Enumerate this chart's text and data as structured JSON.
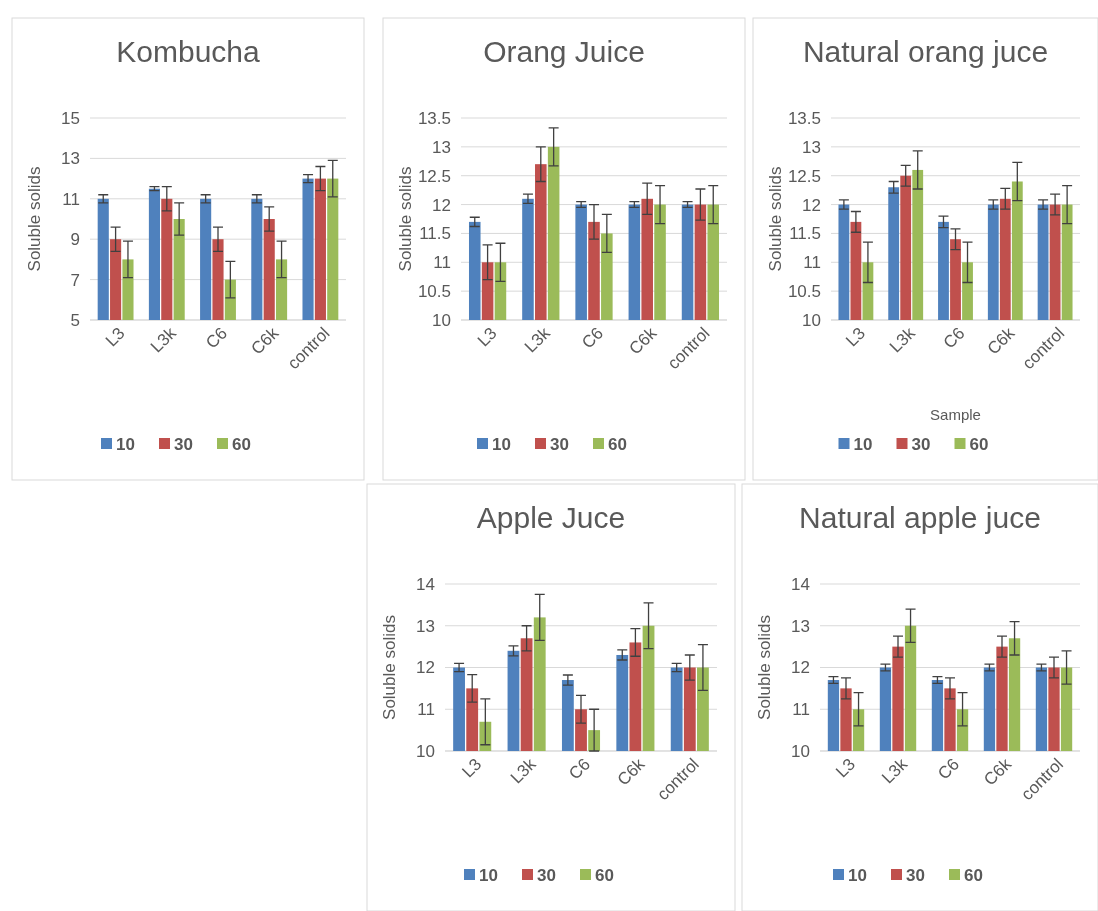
{
  "chart_data": [
    {
      "type": "bar",
      "title": "Kombucha",
      "ylabel": "Soluble solids",
      "categories": [
        "L3",
        "L3k",
        "C6",
        "C6k",
        "control"
      ],
      "ylim": [
        5,
        15
      ],
      "yticks": [
        5,
        7,
        9,
        11,
        13,
        15
      ],
      "grid": "y",
      "legend": "bottom",
      "series": [
        {
          "name": "10",
          "color": "#4f81bd",
          "values": [
            11,
            11.5,
            11,
            11,
            12
          ],
          "errors": [
            0.2,
            0.1,
            0.2,
            0.2,
            0.2
          ]
        },
        {
          "name": "30",
          "color": "#c0504d",
          "values": [
            9,
            11,
            9,
            10,
            12
          ],
          "errors": [
            0.6,
            0.6,
            0.6,
            0.6,
            0.6
          ]
        },
        {
          "name": "60",
          "color": "#9bbb59",
          "values": [
            8,
            10,
            7,
            8,
            12
          ],
          "errors": [
            0.9,
            0.8,
            0.9,
            0.9,
            0.9
          ]
        }
      ]
    },
    {
      "type": "bar",
      "title": "Orang Juice",
      "ylabel": "Soluble solids",
      "categories": [
        "L3",
        "L3k",
        "C6",
        "C6k",
        "control"
      ],
      "ylim": [
        10,
        13.5
      ],
      "yticks": [
        10,
        10.5,
        11,
        11.5,
        12,
        12.5,
        13,
        13.5
      ],
      "grid": "y",
      "legend": "bottom",
      "series": [
        {
          "name": "10",
          "color": "#4f81bd",
          "values": [
            11.7,
            12.1,
            12,
            12,
            12
          ],
          "errors": [
            0.08,
            0.08,
            0.05,
            0.05,
            0.05
          ]
        },
        {
          "name": "30",
          "color": "#c0504d",
          "values": [
            11,
            12.7,
            11.7,
            12.1,
            12
          ],
          "errors": [
            0.3,
            0.3,
            0.3,
            0.27,
            0.27
          ]
        },
        {
          "name": "60",
          "color": "#9bbb59",
          "values": [
            11,
            13,
            11.5,
            12,
            12
          ],
          "errors": [
            0.33,
            0.33,
            0.33,
            0.33,
            0.33
          ]
        }
      ]
    },
    {
      "type": "bar",
      "title": "Natural orang juce",
      "xlabel": "Sample",
      "ylabel": "Soluble solids",
      "categories": [
        "L3",
        "L3k",
        "C6",
        "C6k",
        "control"
      ],
      "ylim": [
        10,
        13.5
      ],
      "yticks": [
        10,
        10.5,
        11,
        11.5,
        12,
        12.5,
        13,
        13.5
      ],
      "grid": "y",
      "legend": "bottom",
      "series": [
        {
          "name": "10",
          "color": "#4f81bd",
          "values": [
            12,
            12.3,
            11.7,
            12,
            12
          ],
          "errors": [
            0.08,
            0.1,
            0.1,
            0.08,
            0.08
          ]
        },
        {
          "name": "30",
          "color": "#c0504d",
          "values": [
            11.7,
            12.5,
            11.4,
            12.1,
            12
          ],
          "errors": [
            0.18,
            0.18,
            0.18,
            0.18,
            0.18
          ]
        },
        {
          "name": "60",
          "color": "#9bbb59",
          "values": [
            11,
            12.6,
            11,
            12.4,
            12
          ],
          "errors": [
            0.35,
            0.33,
            0.35,
            0.33,
            0.33
          ]
        }
      ]
    },
    {
      "type": "bar",
      "title": "Apple Juce",
      "ylabel": "Soluble solids",
      "categories": [
        "L3",
        "L3k",
        "C6",
        "C6k",
        "control"
      ],
      "ylim": [
        10,
        14
      ],
      "yticks": [
        10,
        11,
        12,
        13,
        14
      ],
      "grid": "y",
      "legend": "bottom",
      "series": [
        {
          "name": "10",
          "color": "#4f81bd",
          "values": [
            12,
            12.4,
            11.7,
            12.3,
            12
          ],
          "errors": [
            0.1,
            0.12,
            0.12,
            0.12,
            0.1
          ]
        },
        {
          "name": "30",
          "color": "#c0504d",
          "values": [
            11.5,
            12.7,
            11,
            12.6,
            12
          ],
          "errors": [
            0.33,
            0.3,
            0.33,
            0.33,
            0.3
          ]
        },
        {
          "name": "60",
          "color": "#9bbb59",
          "values": [
            10.7,
            13.2,
            10.5,
            13,
            12
          ],
          "errors": [
            0.55,
            0.55,
            0.5,
            0.55,
            0.55
          ]
        }
      ]
    },
    {
      "type": "bar",
      "title": "Natural apple juce",
      "ylabel": "Soluble solids",
      "categories": [
        "L3",
        "L3k",
        "C6",
        "C6k",
        "control"
      ],
      "ylim": [
        10,
        14
      ],
      "yticks": [
        10,
        11,
        12,
        13,
        14
      ],
      "grid": "y",
      "legend": "bottom",
      "series": [
        {
          "name": "10",
          "color": "#4f81bd",
          "values": [
            11.7,
            12,
            11.7,
            12,
            12
          ],
          "errors": [
            0.08,
            0.08,
            0.08,
            0.08,
            0.08
          ]
        },
        {
          "name": "30",
          "color": "#c0504d",
          "values": [
            11.5,
            12.5,
            11.5,
            12.5,
            12
          ],
          "errors": [
            0.25,
            0.25,
            0.25,
            0.25,
            0.25
          ]
        },
        {
          "name": "60",
          "color": "#9bbb59",
          "values": [
            11,
            13,
            11,
            12.7,
            12
          ],
          "errors": [
            0.4,
            0.4,
            0.4,
            0.4,
            0.4
          ]
        }
      ]
    }
  ]
}
